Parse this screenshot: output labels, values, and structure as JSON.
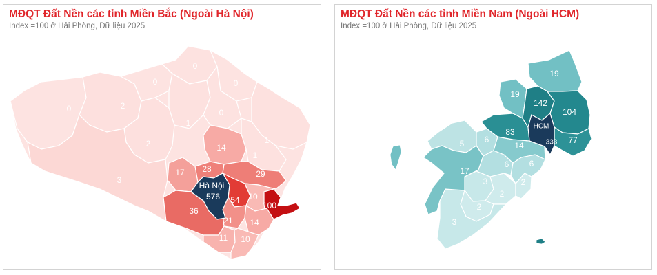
{
  "north": {
    "title": "MĐQT Đất Nền các tỉnh Miền Bắc (Ngoài Hà Nội)",
    "subtitle": "Index =100 ở Hải Phòng, Dữ liệu 2025",
    "capital_name": "Hà Nội",
    "capital_value": "576",
    "provinces": [
      {
        "value": "0",
        "color": "#fde3e1"
      },
      {
        "value": "2",
        "color": "#fde0de"
      },
      {
        "value": "0",
        "color": "#fde3e1"
      },
      {
        "value": "0",
        "color": "#fde2e0"
      },
      {
        "value": "0",
        "color": "#fde3e1"
      },
      {
        "value": "1",
        "color": "#fde1df"
      },
      {
        "value": "0",
        "color": "#fde2e0"
      },
      {
        "value": "1",
        "color": "#fde1df"
      },
      {
        "value": "2",
        "color": "#fde0de"
      },
      {
        "value": "14",
        "color": "#f7aaa5"
      },
      {
        "value": "1",
        "color": "#fde1df"
      },
      {
        "value": "3",
        "color": "#fcd8d5"
      },
      {
        "value": "17",
        "color": "#f4a09a"
      },
      {
        "value": "28",
        "color": "#ef8079"
      },
      {
        "value": "29",
        "color": "#ee7e77"
      },
      {
        "value": "54",
        "color": "#e23c35"
      },
      {
        "value": "10",
        "color": "#f9bab5"
      },
      {
        "value": "100",
        "color": "#c40f12"
      },
      {
        "value": "36",
        "color": "#e96b64"
      },
      {
        "value": "21",
        "color": "#f29089"
      },
      {
        "value": "14",
        "color": "#f7aaa5"
      },
      {
        "value": "11",
        "color": "#f8b3ae"
      },
      {
        "value": "10",
        "color": "#f9bab5"
      }
    ]
  },
  "south": {
    "title": "MĐQT Đất Nền các tỉnh Miền Nam (Ngoài HCM)",
    "subtitle": "Index =100 ở Hải Phòng, Dữ liệu 2025",
    "capital_name": "HCM",
    "capital_value": "333",
    "provinces": [
      {
        "value": "19",
        "color": "#72c0c4"
      },
      {
        "value": "19",
        "color": "#72c0c4"
      },
      {
        "value": "142",
        "color": "#1f7f86"
      },
      {
        "value": "104",
        "color": "#23888e"
      },
      {
        "value": "83",
        "color": "#2a8f94"
      },
      {
        "value": "77",
        "color": "#2d9297"
      },
      {
        "value": "14",
        "color": "#86cacd"
      },
      {
        "value": "5",
        "color": "#bde3e4"
      },
      {
        "value": "6",
        "color": "#b3dfe1"
      },
      {
        "value": "17",
        "color": "#79c3c6"
      },
      {
        "value": "6",
        "color": "#b3dfe1"
      },
      {
        "value": "6",
        "color": "#b3dfe1"
      },
      {
        "value": "3",
        "color": "#c7e8e9"
      },
      {
        "value": "2",
        "color": "#cfebec"
      },
      {
        "value": "2",
        "color": "#cfebec"
      },
      {
        "value": "2",
        "color": "#cfebec"
      },
      {
        "value": "3",
        "color": "#c7e8e9"
      }
    ]
  }
}
